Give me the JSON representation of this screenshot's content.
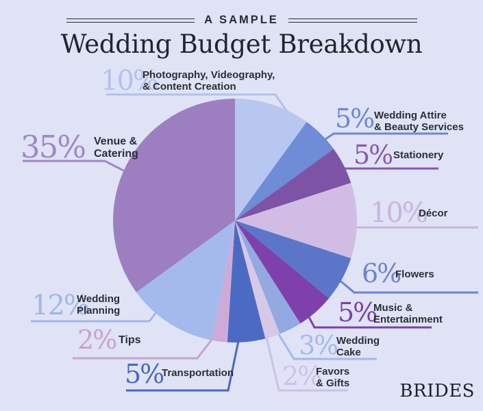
{
  "header": {
    "kicker": "A SAMPLE",
    "title": "Wedding Budget Breakdown"
  },
  "brand": {
    "logo_text": "BRIDES"
  },
  "canvas": {
    "background": "#dfe3f5",
    "label_text_color": "#2b2e38"
  },
  "chart_data": {
    "type": "pie",
    "title": "A Sample Wedding Budget Breakdown",
    "start_angle_deg": 0,
    "direction": "clockwise",
    "units": "percent",
    "total": 100,
    "legend_position": "callouts-around-pie",
    "segments": [
      {
        "id": "photography",
        "value": 10,
        "pct_label": "10%",
        "label": "Photography, Videography, & Content Creation",
        "label_lines": [
          "Photography, Videography,",
          "& Content Creation"
        ],
        "slice_color": "#b7c7f0",
        "accent_color": "#b2c2ec"
      },
      {
        "id": "attire",
        "value": 5,
        "pct_label": "5%",
        "label": "Wedding Attire & Beauty Services",
        "label_lines": [
          "Wedding Attire",
          "& Beauty Services"
        ],
        "slice_color": "#6f8cd6",
        "accent_color": "#6f86d2"
      },
      {
        "id": "stationery",
        "value": 5,
        "pct_label": "5%",
        "label": "Stationery",
        "label_lines": [
          "Stationery"
        ],
        "slice_color": "#7d53a5",
        "accent_color": "#8957ae"
      },
      {
        "id": "decor",
        "value": 10,
        "pct_label": "10%",
        "label": "Décor",
        "label_lines": [
          "Décor"
        ],
        "slice_color": "#d1bde3",
        "accent_color": "#ccb2e1"
      },
      {
        "id": "flowers",
        "value": 6,
        "pct_label": "6%",
        "label": "Flowers",
        "label_lines": [
          "Flowers"
        ],
        "slice_color": "#5b76c9",
        "accent_color": "#6b83d1"
      },
      {
        "id": "music",
        "value": 5,
        "pct_label": "5%",
        "label": "Music & Entertainment",
        "label_lines": [
          "Music &",
          "Entertainment"
        ],
        "slice_color": "#7e41ab",
        "accent_color": "#7c40aa"
      },
      {
        "id": "cake",
        "value": 3,
        "pct_label": "3%",
        "label": "Wedding Cake",
        "label_lines": [
          "Wedding",
          "Cake"
        ],
        "slice_color": "#92a9e2",
        "accent_color": "#a2b9ec"
      },
      {
        "id": "favors",
        "value": 2,
        "pct_label": "2%",
        "label": "Favors & Gifts",
        "label_lines": [
          "Favors",
          "& Gifts"
        ],
        "slice_color": "#d8c8e8",
        "accent_color": "#cec0ea"
      },
      {
        "id": "transportation",
        "value": 5,
        "pct_label": "5%",
        "label": "Transportation",
        "label_lines": [
          "Transportation"
        ],
        "slice_color": "#4b6ac3",
        "accent_color": "#4967c3"
      },
      {
        "id": "tips",
        "value": 2,
        "pct_label": "2%",
        "label": "Tips",
        "label_lines": [
          "Tips"
        ],
        "slice_color": "#cdabd6",
        "accent_color": "#c7a2cd"
      },
      {
        "id": "planning",
        "value": 12,
        "pct_label": "12%",
        "label": "Wedding Planning",
        "label_lines": [
          "Wedding",
          "Planning"
        ],
        "slice_color": "#a4baec",
        "accent_color": "#a1b6e8"
      },
      {
        "id": "venue",
        "value": 35,
        "pct_label": "35%",
        "label": "Venue & Catering",
        "label_lines": [
          "Venue &",
          "Catering"
        ],
        "slice_color": "#9d7fc1",
        "accent_color": "#a285c7"
      }
    ]
  }
}
